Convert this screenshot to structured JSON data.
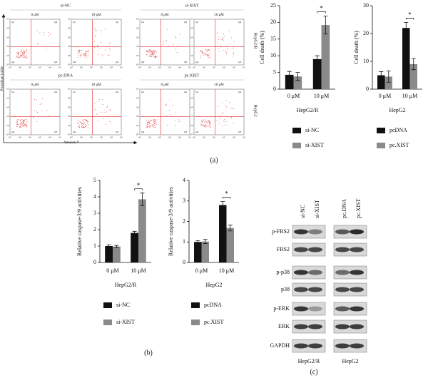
{
  "chart_data": [
    {
      "type": "bar",
      "ylabel": "Cell death (%)",
      "xlabel": "HepG2/R",
      "categories": [
        "0 μM",
        "10 μM"
      ],
      "series": [
        {
          "name": "si-NC",
          "color": "#111111",
          "values": [
            4.3,
            9.0
          ],
          "errors": [
            1.0,
            1.0
          ]
        },
        {
          "name": "si-XIST",
          "color": "#8a8a8a",
          "values": [
            3.8,
            19.2
          ],
          "errors": [
            1.2,
            2.7
          ]
        }
      ],
      "ylim": [
        0,
        25
      ],
      "yticks": [
        0,
        5,
        10,
        15,
        20,
        25
      ],
      "annotation": "*"
    },
    {
      "type": "bar",
      "ylabel": "Cell death (%)",
      "xlabel": "HepG2",
      "categories": [
        "0 μM",
        "10 μM"
      ],
      "series": [
        {
          "name": "pcDNA",
          "color": "#111111",
          "values": [
            5.0,
            22.0
          ],
          "errors": [
            1.3,
            2.0
          ]
        },
        {
          "name": "pc.XIST",
          "color": "#8a8a8a",
          "values": [
            4.5,
            9.0
          ],
          "errors": [
            2.0,
            2.0
          ]
        }
      ],
      "ylim": [
        0,
        30
      ],
      "yticks": [
        0,
        10,
        20,
        30
      ],
      "annotation": "*"
    },
    {
      "type": "bar",
      "ylabel": "Relative caspase-3/9 activities",
      "xlabel": "HepG2/R",
      "categories": [
        "0 μM",
        "10 μM"
      ],
      "series": [
        {
          "name": "si-NC",
          "color": "#111111",
          "values": [
            1.0,
            1.8
          ],
          "errors": [
            0.08,
            0.1
          ]
        },
        {
          "name": "si-XIST",
          "color": "#8a8a8a",
          "values": [
            0.97,
            3.85
          ],
          "errors": [
            0.07,
            0.38
          ]
        }
      ],
      "ylim": [
        0,
        5
      ],
      "yticks": [
        0,
        1,
        2,
        3,
        4,
        5
      ],
      "annotation": "*"
    },
    {
      "type": "bar",
      "ylabel": "Relative caspase-3/9 activities",
      "xlabel": "HepG2",
      "categories": [
        "0 μM",
        "10 μM"
      ],
      "series": [
        {
          "name": "pcDNA",
          "color": "#111111",
          "values": [
            1.0,
            2.8
          ],
          "errors": [
            0.06,
            0.17
          ]
        },
        {
          "name": "pc.XIST",
          "color": "#8a8a8a",
          "values": [
            1.02,
            1.68
          ],
          "errors": [
            0.1,
            0.14
          ]
        }
      ],
      "ylim": [
        0,
        4
      ],
      "yticks": [
        0,
        1,
        2,
        3,
        4
      ],
      "annotation": "*"
    }
  ],
  "flow_panel": {
    "y_label": "Propidium iodide",
    "x_label": "Annexin V",
    "quadrants": [
      "Q1",
      "Q2",
      "Q3",
      "Q4"
    ],
    "ticks": [
      "10⁰",
      "10¹",
      "10²",
      "10³",
      "10⁴",
      "10⁵"
    ],
    "doses": [
      "0 μM",
      "10 μM"
    ],
    "rows": [
      {
        "label": "HepG2/R",
        "groups": [
          "si-NC",
          "si-XIST"
        ]
      },
      {
        "label": "HepG2",
        "groups": [
          "pc.DNA",
          "pc.XIST"
        ]
      }
    ]
  },
  "western_blot": {
    "lanes": [
      "si-NC",
      "si-XIST",
      "pc.DNA",
      "pc.XIST"
    ],
    "rows": [
      "p-FRS2",
      "FRS2",
      "p-p38",
      "p38",
      "p-ERK",
      "ERK",
      "GAPDH"
    ],
    "groups": [
      "HepG2/R",
      "HepG2"
    ]
  },
  "panel_labels": [
    "(a)",
    "(b)",
    "(c)"
  ]
}
